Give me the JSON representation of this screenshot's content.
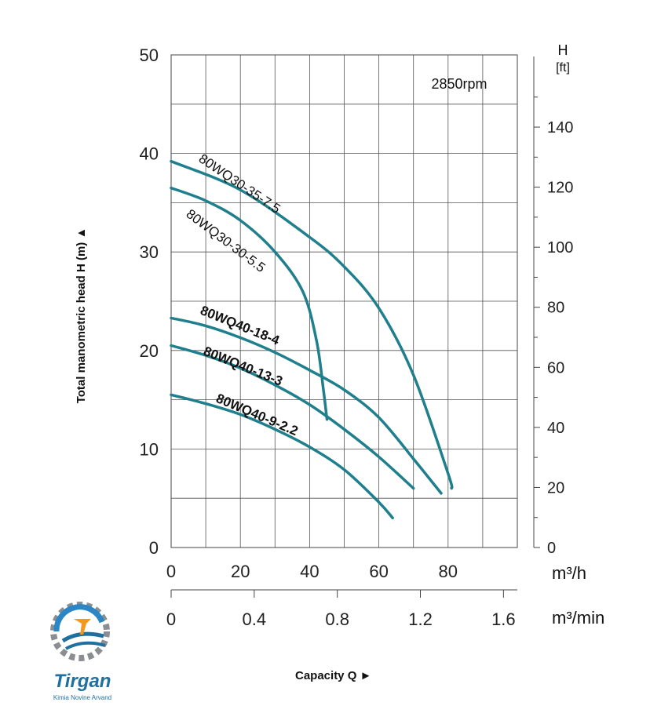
{
  "chart_data": {
    "type": "line",
    "annotation": "2850rpm",
    "ylabel": "Total manometric head H (m)",
    "xlabel": "Capacity Q",
    "ylim": [
      0,
      50
    ],
    "xlim": [
      0,
      100
    ],
    "y_ticks": [
      "0",
      "10",
      "20",
      "30",
      "40",
      "50"
    ],
    "x_ticks_m3h": [
      "0",
      "20",
      "40",
      "60",
      "80"
    ],
    "x_unit_m3h": "m³/h",
    "x_ticks_m3min": [
      "0",
      "0.4",
      "0.8",
      "1.2",
      "1.6"
    ],
    "x_unit_m3min": "m³/min",
    "y2_label": "H",
    "y2_unit": "[ft]",
    "y2_ticks": [
      "0",
      "20",
      "40",
      "60",
      "80",
      "100",
      "120",
      "140"
    ],
    "grid": true,
    "series": [
      {
        "name": "80WQ30-35-7.5",
        "x": [
          0,
          20,
          40,
          50,
          60,
          70,
          80,
          81
        ],
        "y": [
          39.2,
          36.3,
          31.5,
          28.5,
          24.3,
          17.5,
          7.5,
          6.0
        ]
      },
      {
        "name": "80WQ30-30-5.5",
        "x": [
          0,
          10,
          20,
          30,
          38,
          42,
          44,
          45
        ],
        "y": [
          36.5,
          35.2,
          33.2,
          30.0,
          26.0,
          21.0,
          16.0,
          13.0
        ]
      },
      {
        "name": "80WQ40-18-4",
        "x": [
          0,
          10,
          20,
          30,
          40,
          50,
          60,
          70,
          78
        ],
        "y": [
          23.3,
          22.5,
          21.3,
          19.8,
          18.0,
          16.0,
          13.2,
          9.0,
          5.5
        ]
      },
      {
        "name": "80WQ40-13-3",
        "x": [
          0,
          10,
          20,
          30,
          40,
          50,
          60,
          70
        ],
        "y": [
          20.5,
          19.5,
          18.2,
          16.5,
          14.5,
          12.0,
          9.2,
          6.0
        ]
      },
      {
        "name": "80WQ40-9-2.2",
        "x": [
          0,
          10,
          20,
          30,
          40,
          50,
          60,
          64
        ],
        "y": [
          15.5,
          14.6,
          13.5,
          12.0,
          10.2,
          7.9,
          4.6,
          3.0
        ]
      }
    ],
    "curve_color": "#1f7f8c"
  },
  "logo": {
    "name": "Tirgan",
    "subtitle": "Kimia Novine Arvand"
  }
}
